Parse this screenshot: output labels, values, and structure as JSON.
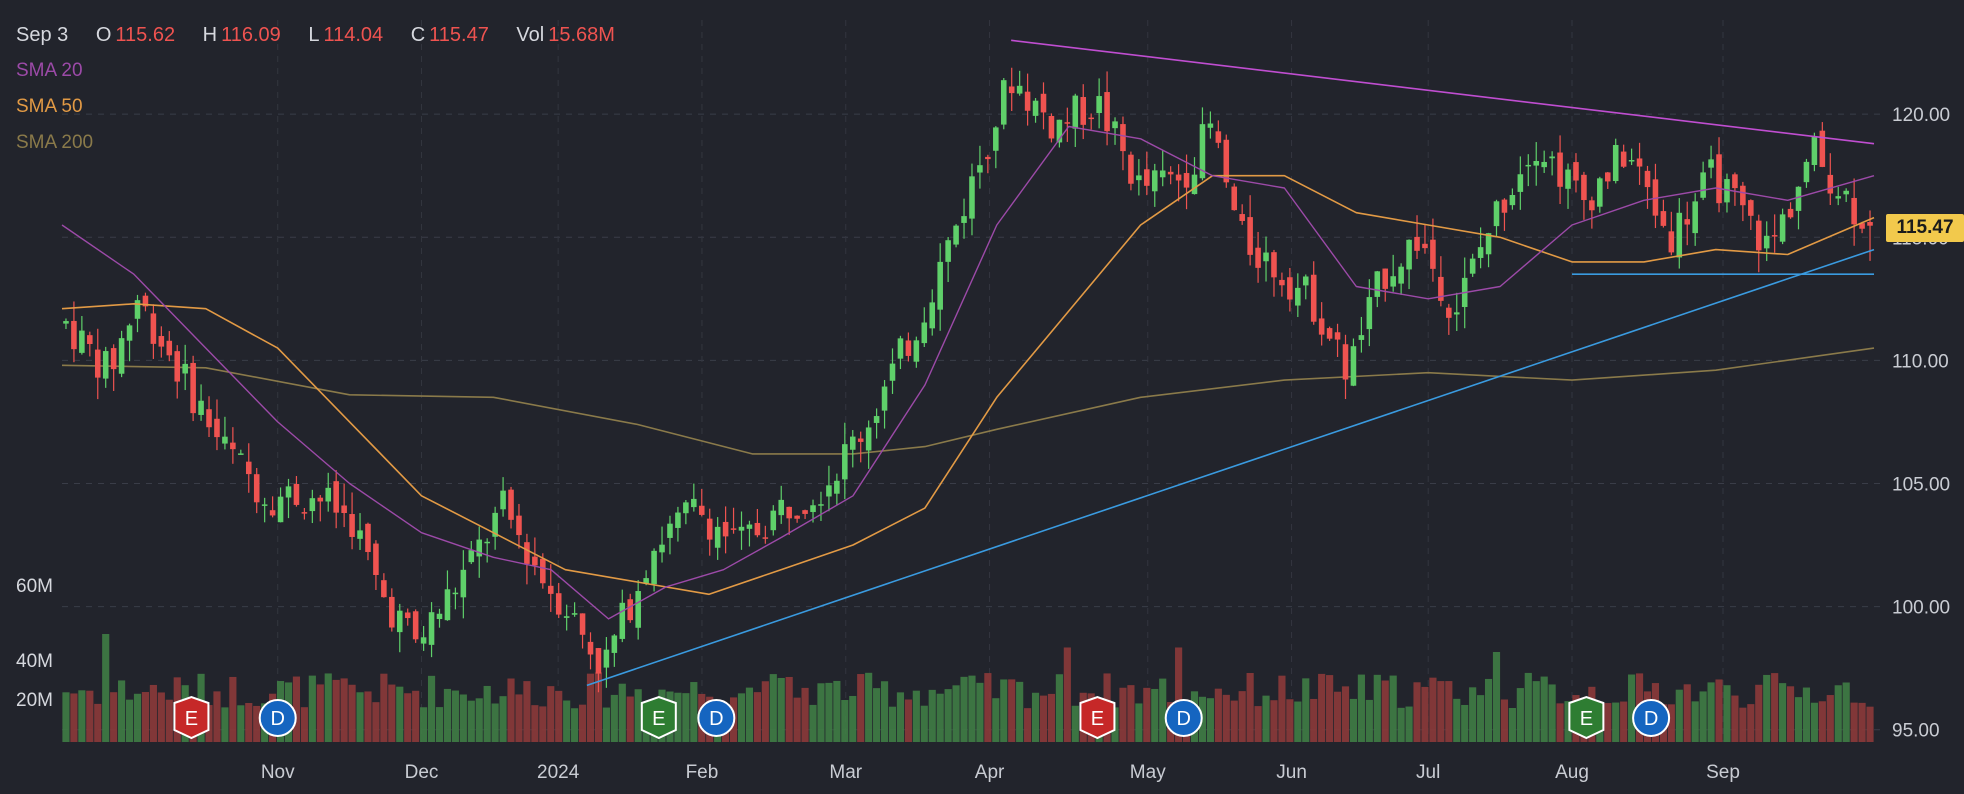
{
  "header": {
    "date": "Sep 3",
    "open_label": "O",
    "open": "115.62",
    "high_label": "H",
    "high": "116.09",
    "low_label": "L",
    "low": "114.04",
    "close_label": "C",
    "close": "115.47",
    "vol_label": "Vol",
    "vol": "15.68M"
  },
  "indicators": {
    "sma20": "SMA 20",
    "sma50": "SMA 50",
    "sma200": "SMA 200"
  },
  "volume_axis": [
    "60M",
    "40M",
    "20M"
  ],
  "price_tag": "115.47",
  "colors": {
    "background": "#22242c",
    "up": "#5fd06a",
    "down": "#ef5350",
    "sma20": "#9c4aa8",
    "sma50": "#e29a45",
    "sma200": "#8a7a4a",
    "trend_upper": "#c04ed1",
    "trend_lower": "#3a9be0",
    "price_tag": "#f2c94c"
  },
  "chart_data": {
    "type": "candlestick",
    "title": "",
    "x_axis_labels": [
      "Nov",
      "Dec",
      "2024",
      "Feb",
      "Mar",
      "Apr",
      "May",
      "Jun",
      "Jul",
      "Aug",
      "Sep"
    ],
    "y_axis_labels": [
      "120.00",
      "115.00",
      "110.00",
      "105.00",
      "100.00",
      "95.00"
    ],
    "ylim": [
      94.5,
      123.5
    ],
    "last_close": 115.47,
    "last_bar": {
      "date": "Sep 3",
      "open": 115.62,
      "high": 116.09,
      "low": 114.04,
      "close": 115.47,
      "volume": "15.68M"
    },
    "close_path": [
      {
        "m": 0,
        "v": 111.5
      },
      {
        "m": 0.3,
        "v": 109.5
      },
      {
        "m": 0.5,
        "v": 112.5
      },
      {
        "m": 0.85,
        "v": 109.0
      },
      {
        "m": 1.1,
        "v": 106.5
      },
      {
        "m": 1.4,
        "v": 104.5
      },
      {
        "m": 1.75,
        "v": 104.5
      },
      {
        "m": 2.0,
        "v": 103.5
      },
      {
        "m": 2.2,
        "v": 100.5
      },
      {
        "m": 2.45,
        "v": 98.5
      },
      {
        "m": 2.8,
        "v": 101.5
      },
      {
        "m": 3.05,
        "v": 104.0
      },
      {
        "m": 3.35,
        "v": 101.0
      },
      {
        "m": 3.5,
        "v": 100.0
      },
      {
        "m": 3.75,
        "v": 97.5
      },
      {
        "m": 4.1,
        "v": 102.5
      },
      {
        "m": 4.4,
        "v": 104.0
      },
      {
        "m": 4.7,
        "v": 102.5
      },
      {
        "m": 5.0,
        "v": 104.0
      },
      {
        "m": 5.3,
        "v": 105.0
      },
      {
        "m": 5.6,
        "v": 107.5
      },
      {
        "m": 5.95,
        "v": 111.5
      },
      {
        "m": 6.25,
        "v": 116.0
      },
      {
        "m": 6.6,
        "v": 121.5
      },
      {
        "m": 6.9,
        "v": 119.5
      },
      {
        "m": 7.2,
        "v": 120.5
      },
      {
        "m": 7.5,
        "v": 117.0
      },
      {
        "m": 7.8,
        "v": 117.5
      },
      {
        "m": 8.0,
        "v": 119.5
      },
      {
        "m": 8.2,
        "v": 115.0
      },
      {
        "m": 8.5,
        "v": 113.5
      },
      {
        "m": 8.7,
        "v": 112.5
      },
      {
        "m": 8.95,
        "v": 109.5
      },
      {
        "m": 9.2,
        "v": 113.5
      },
      {
        "m": 9.45,
        "v": 115.0
      },
      {
        "m": 9.7,
        "v": 112.0
      },
      {
        "m": 9.95,
        "v": 115.5
      },
      {
        "m": 10.25,
        "v": 119.0
      },
      {
        "m": 10.6,
        "v": 116.5
      },
      {
        "m": 10.9,
        "v": 118.5
      },
      {
        "m": 11.2,
        "v": 115.0
      },
      {
        "m": 11.5,
        "v": 117.5
      },
      {
        "m": 11.9,
        "v": 114.5
      },
      {
        "m": 12.2,
        "v": 118.5
      },
      {
        "m": 12.45,
        "v": 116.5
      },
      {
        "m": 12.6,
        "v": 115.47
      }
    ],
    "series": [
      {
        "name": "SMA 20",
        "points": [
          {
            "m": 0,
            "v": 115.5
          },
          {
            "m": 0.5,
            "v": 113.5
          },
          {
            "m": 1.0,
            "v": 110.5
          },
          {
            "m": 1.5,
            "v": 107.5
          },
          {
            "m": 2.0,
            "v": 105.0
          },
          {
            "m": 2.5,
            "v": 103.0
          },
          {
            "m": 3.0,
            "v": 102.0
          },
          {
            "m": 3.4,
            "v": 101.5
          },
          {
            "m": 3.8,
            "v": 99.5
          },
          {
            "m": 4.2,
            "v": 100.8
          },
          {
            "m": 4.6,
            "v": 101.5
          },
          {
            "m": 5.0,
            "v": 102.8
          },
          {
            "m": 5.5,
            "v": 104.5
          },
          {
            "m": 6.0,
            "v": 109.0
          },
          {
            "m": 6.5,
            "v": 115.5
          },
          {
            "m": 7.0,
            "v": 119.5
          },
          {
            "m": 7.5,
            "v": 119.0
          },
          {
            "m": 8.0,
            "v": 117.5
          },
          {
            "m": 8.5,
            "v": 117.0
          },
          {
            "m": 9.0,
            "v": 113.0
          },
          {
            "m": 9.5,
            "v": 112.5
          },
          {
            "m": 10.0,
            "v": 113.0
          },
          {
            "m": 10.5,
            "v": 115.5
          },
          {
            "m": 11.0,
            "v": 116.5
          },
          {
            "m": 11.5,
            "v": 117.0
          },
          {
            "m": 12.0,
            "v": 116.5
          },
          {
            "m": 12.6,
            "v": 117.5
          }
        ]
      },
      {
        "name": "SMA 50",
        "points": [
          {
            "m": 0,
            "v": 112.1
          },
          {
            "m": 0.5,
            "v": 112.3
          },
          {
            "m": 1.0,
            "v": 112.1
          },
          {
            "m": 1.5,
            "v": 110.5
          },
          {
            "m": 2.0,
            "v": 107.5
          },
          {
            "m": 2.5,
            "v": 104.5
          },
          {
            "m": 3.0,
            "v": 103.0
          },
          {
            "m": 3.5,
            "v": 101.5
          },
          {
            "m": 4.0,
            "v": 101.0
          },
          {
            "m": 4.5,
            "v": 100.5
          },
          {
            "m": 5.0,
            "v": 101.5
          },
          {
            "m": 5.5,
            "v": 102.5
          },
          {
            "m": 6.0,
            "v": 104.0
          },
          {
            "m": 6.5,
            "v": 108.5
          },
          {
            "m": 7.0,
            "v": 112.0
          },
          {
            "m": 7.5,
            "v": 115.5
          },
          {
            "m": 8.0,
            "v": 117.5
          },
          {
            "m": 8.5,
            "v": 117.5
          },
          {
            "m": 9.0,
            "v": 116.0
          },
          {
            "m": 9.5,
            "v": 115.5
          },
          {
            "m": 10.0,
            "v": 115.0
          },
          {
            "m": 10.5,
            "v": 114.0
          },
          {
            "m": 11.0,
            "v": 114.0
          },
          {
            "m": 11.5,
            "v": 114.5
          },
          {
            "m": 12.0,
            "v": 114.3
          },
          {
            "m": 12.6,
            "v": 115.8
          }
        ]
      },
      {
        "name": "SMA 200",
        "points": [
          {
            "m": 0,
            "v": 109.8
          },
          {
            "m": 1.0,
            "v": 109.7
          },
          {
            "m": 2.0,
            "v": 108.6
          },
          {
            "m": 3.0,
            "v": 108.5
          },
          {
            "m": 4.0,
            "v": 107.4
          },
          {
            "m": 4.8,
            "v": 106.2
          },
          {
            "m": 5.5,
            "v": 106.2
          },
          {
            "m": 6.0,
            "v": 106.5
          },
          {
            "m": 6.5,
            "v": 107.2
          },
          {
            "m": 7.5,
            "v": 108.5
          },
          {
            "m": 8.5,
            "v": 109.2
          },
          {
            "m": 9.5,
            "v": 109.5
          },
          {
            "m": 10.5,
            "v": 109.2
          },
          {
            "m": 11.5,
            "v": 109.6
          },
          {
            "m": 12.6,
            "v": 110.5
          }
        ]
      }
    ],
    "trendlines": [
      {
        "name": "upper",
        "from": {
          "m": 6.6,
          "v": 123.0
        },
        "to": {
          "m": 12.6,
          "v": 118.8
        }
      },
      {
        "name": "lower",
        "from": {
          "m": 3.65,
          "v": 96.8
        },
        "to": {
          "m": 12.6,
          "v": 114.5
        }
      },
      {
        "name": "support",
        "from": {
          "m": 10.5,
          "v": 113.5
        },
        "to": {
          "m": 12.6,
          "v": 113.5
        }
      }
    ],
    "volume_ylim": [
      0,
      70
    ],
    "event_markers": [
      {
        "label": "E",
        "type": "earnings",
        "m": 0.9
      },
      {
        "label": "D",
        "type": "dividend",
        "m": 1.5
      },
      {
        "label": "E",
        "type": "earnings",
        "m": 4.15
      },
      {
        "label": "D",
        "type": "dividend",
        "m": 4.55
      },
      {
        "label": "E",
        "type": "earnings",
        "m": 7.2
      },
      {
        "label": "D",
        "type": "dividend",
        "m": 7.8
      },
      {
        "label": "E",
        "type": "earnings",
        "m": 10.6
      },
      {
        "label": "D",
        "type": "dividend",
        "m": 11.05
      }
    ]
  }
}
